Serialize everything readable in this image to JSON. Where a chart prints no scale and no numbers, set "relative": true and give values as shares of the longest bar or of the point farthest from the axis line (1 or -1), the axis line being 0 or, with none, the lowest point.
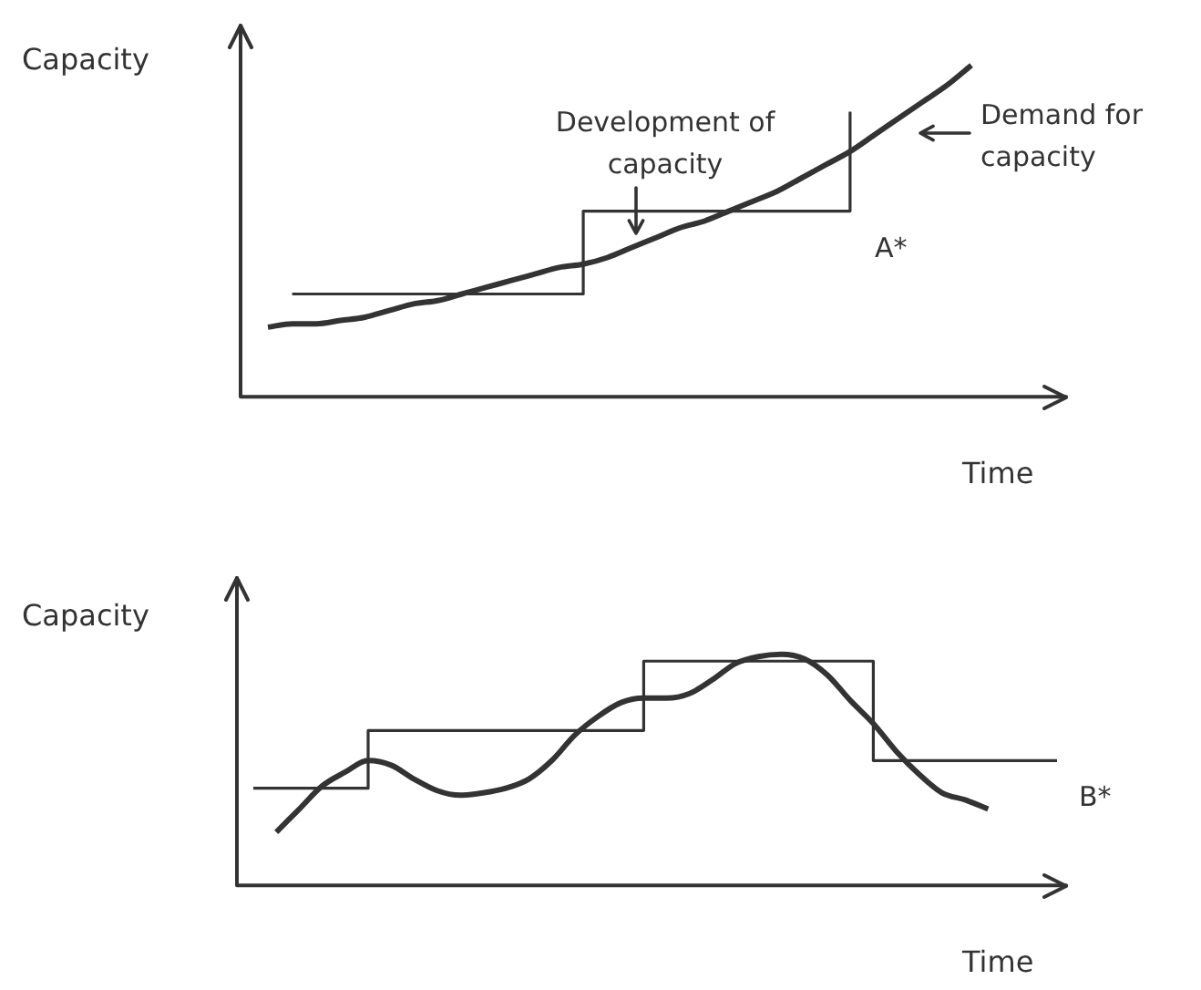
{
  "chart_data": [
    {
      "type": "line",
      "relative": true,
      "ylabel": "Capacity",
      "xlabel": "Time",
      "categories": [
        null,
        null,
        null,
        null,
        null,
        null,
        null,
        null,
        null,
        null,
        null,
        null,
        null,
        null,
        null,
        null,
        null,
        null,
        null,
        null,
        null,
        null,
        null,
        null,
        null,
        null,
        null,
        null,
        null,
        null
      ],
      "series": [
        {
          "type": "line",
          "color": "#333333",
          "values": [
            0.21,
            0.22,
            0.22,
            0.23,
            0.24,
            0.26,
            0.28,
            0.29,
            0.31,
            0.33,
            0.35,
            0.37,
            0.39,
            0.4,
            0.42,
            0.45,
            0.48,
            0.51,
            0.53,
            0.56,
            0.59,
            0.62,
            0.66,
            0.7,
            0.74,
            0.79,
            0.84,
            0.89,
            0.94,
            1.0
          ]
        },
        {
          "type": "step",
          "color": "#333333",
          "values": [
            null,
            0.31,
            0.31,
            0.31,
            0.31,
            0.31,
            0.31,
            0.31,
            0.31,
            0.31,
            0.31,
            0.31,
            0.31,
            0.56,
            0.56,
            0.56,
            0.56,
            0.56,
            0.56,
            0.56,
            0.56,
            0.56,
            0.56,
            0.56,
            0.86,
            null,
            null,
            null,
            null,
            null
          ]
        }
      ],
      "annotations": [
        "Development of capacity",
        "Demand for capacity",
        "A*"
      ]
    },
    {
      "type": "line",
      "relative": true,
      "ylabel": "Capacity",
      "xlabel": "Time",
      "categories": [
        null,
        null,
        null,
        null,
        null,
        null,
        null,
        null,
        null,
        null,
        null,
        null,
        null,
        null,
        null,
        null,
        null,
        null,
        null,
        null,
        null,
        null,
        null,
        null,
        null,
        null,
        null,
        null,
        null,
        null,
        null,
        null,
        null,
        null,
        null,
        null
      ],
      "series": [
        {
          "type": "line",
          "color": "#333333",
          "values": [
            null,
            0.23,
            0.33,
            0.43,
            0.49,
            0.54,
            0.52,
            0.46,
            0.41,
            0.39,
            0.4,
            0.42,
            0.46,
            0.54,
            0.65,
            0.73,
            0.79,
            0.81,
            0.81,
            0.83,
            0.89,
            0.96,
            0.99,
            1.0,
            0.98,
            0.91,
            0.8,
            0.7,
            0.58,
            0.48,
            0.4,
            0.37,
            0.33,
            null,
            null,
            null
          ]
        },
        {
          "type": "step",
          "color": "#333333",
          "values": [
            0.42,
            0.42,
            0.42,
            0.42,
            0.42,
            0.67,
            0.67,
            0.67,
            0.67,
            0.67,
            0.67,
            0.67,
            0.67,
            0.67,
            0.67,
            0.67,
            0.67,
            0.97,
            0.97,
            0.97,
            0.97,
            0.97,
            0.97,
            0.97,
            0.97,
            0.97,
            0.97,
            0.54,
            0.54,
            0.54,
            0.54,
            0.54,
            0.54,
            0.54,
            0.54,
            0.54
          ]
        }
      ],
      "annotations": [
        "B*"
      ]
    }
  ]
}
